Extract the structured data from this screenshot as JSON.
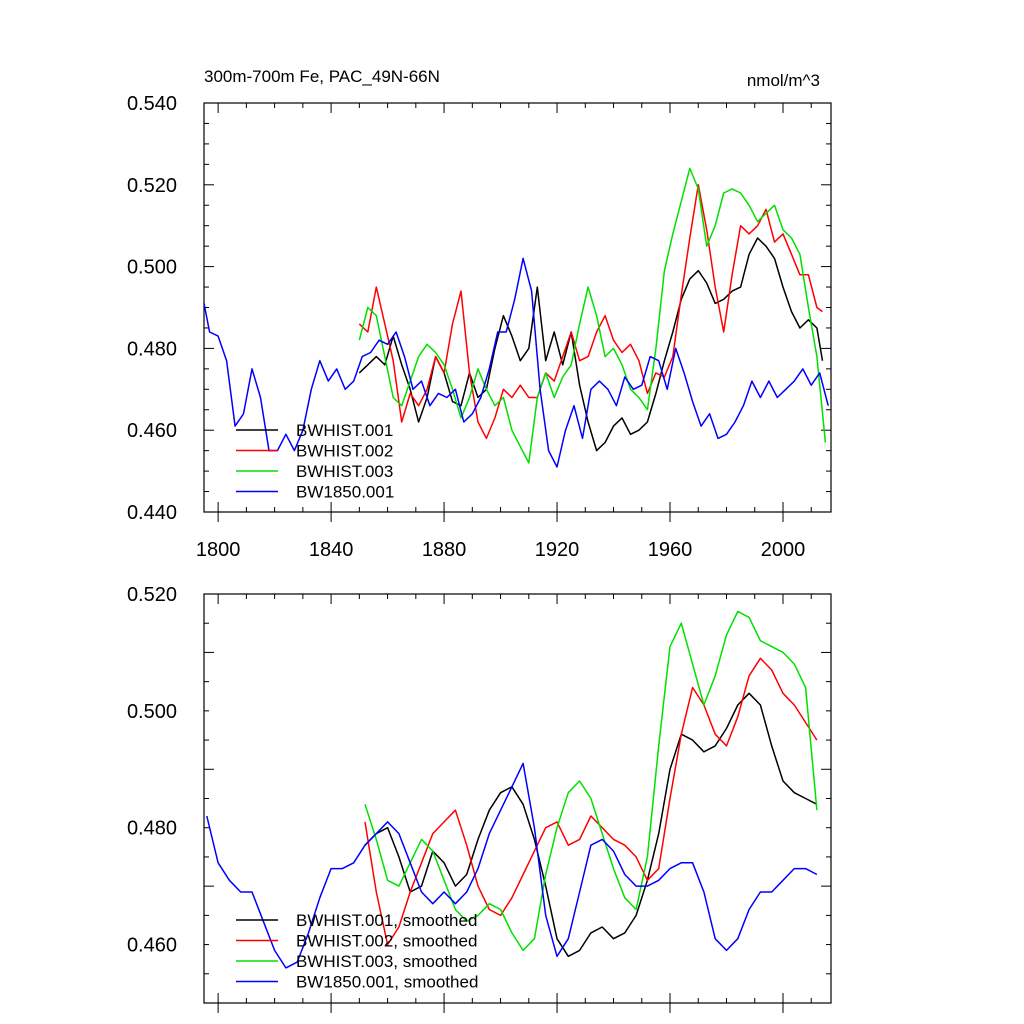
{
  "chart_data": [
    {
      "type": "line",
      "title": "300m-700m Fe, PAC_49N-66N",
      "units": "nmol/m^3",
      "xlim": [
        1795,
        2017
      ],
      "ylim": [
        0.44,
        0.54
      ],
      "x_ticks": [
        "1800",
        "1840",
        "1880",
        "1920",
        "1960",
        "2000"
      ],
      "y_ticks": [
        "0.440",
        "0.460",
        "0.480",
        "0.500",
        "0.520",
        "0.540"
      ],
      "legend_position": "bottom-left",
      "series": [
        {
          "name": "BWHIST.001",
          "color": "#000000",
          "x": [
            1850,
            1853,
            1856,
            1859,
            1862,
            1865,
            1868,
            1871,
            1874,
            1877,
            1880,
            1883,
            1886,
            1889,
            1892,
            1895,
            1898,
            1901,
            1904,
            1907,
            1910,
            1913,
            1916,
            1919,
            1922,
            1925,
            1928,
            1931,
            1934,
            1937,
            1940,
            1943,
            1946,
            1949,
            1952,
            1955,
            1958,
            1961,
            1964,
            1967,
            1970,
            1973,
            1976,
            1979,
            1982,
            1985,
            1988,
            1991,
            1994,
            1997,
            2000,
            2003,
            2006,
            2009,
            2012,
            2014
          ],
          "y": [
            0.474,
            0.476,
            0.478,
            0.476,
            0.483,
            0.476,
            0.47,
            0.462,
            0.468,
            0.478,
            0.474,
            0.467,
            0.466,
            0.474,
            0.468,
            0.47,
            0.48,
            0.488,
            0.483,
            0.477,
            0.48,
            0.495,
            0.477,
            0.484,
            0.476,
            0.484,
            0.471,
            0.462,
            0.455,
            0.457,
            0.461,
            0.463,
            0.459,
            0.46,
            0.462,
            0.469,
            0.477,
            0.484,
            0.492,
            0.497,
            0.499,
            0.496,
            0.491,
            0.492,
            0.494,
            0.495,
            0.503,
            0.507,
            0.505,
            0.502,
            0.495,
            0.489,
            0.485,
            0.487,
            0.485,
            0.477
          ]
        },
        {
          "name": "BWHIST.002",
          "color": "#ff0000",
          "x": [
            1850,
            1853,
            1856,
            1859,
            1862,
            1865,
            1868,
            1871,
            1874,
            1877,
            1880,
            1883,
            1886,
            1889,
            1892,
            1895,
            1898,
            1901,
            1904,
            1907,
            1910,
            1913,
            1916,
            1919,
            1922,
            1925,
            1928,
            1931,
            1934,
            1937,
            1940,
            1943,
            1946,
            1949,
            1952,
            1955,
            1958,
            1961,
            1964,
            1967,
            1970,
            1973,
            1976,
            1979,
            1982,
            1985,
            1988,
            1991,
            1994,
            1997,
            2000,
            2003,
            2006,
            2009,
            2012,
            2014
          ],
          "y": [
            0.486,
            0.484,
            0.495,
            0.486,
            0.477,
            0.462,
            0.469,
            0.466,
            0.47,
            0.478,
            0.474,
            0.486,
            0.494,
            0.474,
            0.462,
            0.458,
            0.463,
            0.47,
            0.468,
            0.471,
            0.468,
            0.468,
            0.474,
            0.472,
            0.478,
            0.484,
            0.477,
            0.478,
            0.484,
            0.488,
            0.482,
            0.479,
            0.481,
            0.477,
            0.469,
            0.474,
            0.473,
            0.478,
            0.493,
            0.507,
            0.52,
            0.509,
            0.495,
            0.484,
            0.498,
            0.51,
            0.508,
            0.51,
            0.514,
            0.506,
            0.508,
            0.503,
            0.498,
            0.498,
            0.49,
            0.489
          ]
        },
        {
          "name": "BWHIST.003",
          "color": "#00e000",
          "x": [
            1850,
            1853,
            1856,
            1859,
            1862,
            1865,
            1868,
            1871,
            1874,
            1877,
            1880,
            1883,
            1886,
            1889,
            1892,
            1895,
            1898,
            1901,
            1904,
            1907,
            1910,
            1913,
            1916,
            1919,
            1922,
            1925,
            1928,
            1931,
            1934,
            1937,
            1940,
            1943,
            1946,
            1949,
            1952,
            1955,
            1958,
            1961,
            1964,
            1967,
            1970,
            1973,
            1976,
            1979,
            1982,
            1985,
            1988,
            1991,
            1994,
            1997,
            2000,
            2003,
            2006,
            2009,
            2012,
            2015
          ],
          "y": [
            0.482,
            0.49,
            0.488,
            0.478,
            0.468,
            0.466,
            0.472,
            0.478,
            0.481,
            0.479,
            0.476,
            0.47,
            0.463,
            0.468,
            0.475,
            0.47,
            0.466,
            0.468,
            0.46,
            0.456,
            0.452,
            0.468,
            0.474,
            0.468,
            0.473,
            0.476,
            0.486,
            0.495,
            0.488,
            0.478,
            0.48,
            0.476,
            0.47,
            0.468,
            0.465,
            0.48,
            0.499,
            0.508,
            0.516,
            0.524,
            0.519,
            0.505,
            0.51,
            0.518,
            0.519,
            0.518,
            0.515,
            0.511,
            0.513,
            0.515,
            0.509,
            0.507,
            0.503,
            0.49,
            0.478,
            0.457
          ]
        },
        {
          "name": "BW1850.001",
          "color": "#0000ff",
          "x": [
            1795,
            1797,
            1800,
            1803,
            1806,
            1809,
            1812,
            1815,
            1818,
            1821,
            1824,
            1827,
            1830,
            1833,
            1836,
            1839,
            1842,
            1845,
            1848,
            1851,
            1854,
            1857,
            1860,
            1863,
            1866,
            1869,
            1872,
            1875,
            1878,
            1881,
            1884,
            1887,
            1890,
            1893,
            1896,
            1899,
            1902,
            1905,
            1908,
            1911,
            1914,
            1917,
            1920,
            1923,
            1926,
            1929,
            1932,
            1935,
            1938,
            1941,
            1944,
            1947,
            1950,
            1953,
            1956,
            1959,
            1962,
            1965,
            1968,
            1971,
            1974,
            1977,
            1980,
            1983,
            1986,
            1989,
            1992,
            1995,
            1998,
            2001,
            2004,
            2007,
            2010,
            2013,
            2016
          ],
          "y": [
            0.491,
            0.484,
            0.483,
            0.477,
            0.461,
            0.464,
            0.475,
            0.468,
            0.455,
            0.455,
            0.459,
            0.455,
            0.46,
            0.47,
            0.477,
            0.472,
            0.475,
            0.47,
            0.472,
            0.478,
            0.479,
            0.482,
            0.481,
            0.484,
            0.478,
            0.47,
            0.472,
            0.466,
            0.469,
            0.468,
            0.47,
            0.462,
            0.464,
            0.468,
            0.475,
            0.484,
            0.484,
            0.492,
            0.502,
            0.494,
            0.47,
            0.455,
            0.451,
            0.46,
            0.466,
            0.458,
            0.47,
            0.472,
            0.47,
            0.466,
            0.473,
            0.47,
            0.471,
            0.478,
            0.477,
            0.47,
            0.48,
            0.474,
            0.467,
            0.461,
            0.464,
            0.458,
            0.459,
            0.462,
            0.466,
            0.472,
            0.468,
            0.472,
            0.468,
            0.47,
            0.472,
            0.475,
            0.471,
            0.474,
            0.466
          ]
        }
      ]
    },
    {
      "type": "line",
      "title": "",
      "units": "",
      "xlim": [
        1795,
        2017
      ],
      "ylim": [
        0.45,
        0.52
      ],
      "x_ticks": [],
      "y_ticks": [
        "0.460",
        "0.480",
        "0.500",
        "0.520"
      ],
      "legend_position": "bottom-left",
      "series": [
        {
          "name": "BWHIST.001, smoothed",
          "color": "#000000",
          "x": [
            1852,
            1856,
            1860,
            1864,
            1868,
            1872,
            1876,
            1880,
            1884,
            1888,
            1892,
            1896,
            1900,
            1904,
            1908,
            1912,
            1916,
            1920,
            1924,
            1928,
            1932,
            1936,
            1940,
            1944,
            1948,
            1952,
            1956,
            1960,
            1964,
            1968,
            1972,
            1976,
            1980,
            1984,
            1988,
            1992,
            1996,
            2000,
            2004,
            2008,
            2012
          ],
          "y": [
            0.477,
            0.479,
            0.48,
            0.475,
            0.469,
            0.47,
            0.476,
            0.474,
            0.47,
            0.472,
            0.478,
            0.483,
            0.486,
            0.487,
            0.484,
            0.478,
            0.47,
            0.461,
            0.458,
            0.459,
            0.462,
            0.463,
            0.461,
            0.462,
            0.465,
            0.471,
            0.479,
            0.49,
            0.496,
            0.495,
            0.493,
            0.494,
            0.497,
            0.501,
            0.503,
            0.501,
            0.494,
            0.488,
            0.486,
            0.485,
            0.484
          ]
        },
        {
          "name": "BWHIST.002, smoothed",
          "color": "#ff0000",
          "x": [
            1852,
            1856,
            1860,
            1864,
            1868,
            1872,
            1876,
            1880,
            1884,
            1888,
            1892,
            1896,
            1900,
            1904,
            1908,
            1912,
            1916,
            1920,
            1924,
            1928,
            1932,
            1936,
            1940,
            1944,
            1948,
            1952,
            1956,
            1960,
            1964,
            1968,
            1972,
            1976,
            1980,
            1984,
            1988,
            1992,
            1996,
            2000,
            2004,
            2008,
            2012
          ],
          "y": [
            0.481,
            0.469,
            0.46,
            0.463,
            0.469,
            0.474,
            0.479,
            0.481,
            0.483,
            0.477,
            0.47,
            0.466,
            0.465,
            0.468,
            0.472,
            0.476,
            0.48,
            0.481,
            0.477,
            0.478,
            0.482,
            0.48,
            0.478,
            0.477,
            0.475,
            0.471,
            0.473,
            0.485,
            0.496,
            0.504,
            0.501,
            0.496,
            0.494,
            0.499,
            0.506,
            0.509,
            0.507,
            0.503,
            0.501,
            0.498,
            0.495
          ]
        },
        {
          "name": "BWHIST.003, smoothed",
          "color": "#00e000",
          "x": [
            1852,
            1856,
            1860,
            1864,
            1868,
            1872,
            1876,
            1880,
            1884,
            1888,
            1892,
            1896,
            1900,
            1904,
            1908,
            1912,
            1916,
            1920,
            1924,
            1928,
            1932,
            1936,
            1940,
            1944,
            1948,
            1952,
            1956,
            1960,
            1964,
            1968,
            1972,
            1976,
            1980,
            1984,
            1988,
            1992,
            1996,
            2000,
            2004,
            2008,
            2012
          ],
          "y": [
            0.484,
            0.478,
            0.471,
            0.47,
            0.474,
            0.478,
            0.476,
            0.471,
            0.466,
            0.464,
            0.465,
            0.467,
            0.466,
            0.462,
            0.459,
            0.461,
            0.472,
            0.48,
            0.486,
            0.488,
            0.485,
            0.479,
            0.473,
            0.468,
            0.466,
            0.475,
            0.494,
            0.511,
            0.515,
            0.508,
            0.501,
            0.506,
            0.513,
            0.517,
            0.516,
            0.512,
            0.511,
            0.51,
            0.508,
            0.504,
            0.483
          ]
        },
        {
          "name": "BW1850.001, smoothed",
          "color": "#0000ff",
          "x": [
            1796,
            1800,
            1804,
            1808,
            1812,
            1816,
            1820,
            1824,
            1828,
            1832,
            1836,
            1840,
            1844,
            1848,
            1852,
            1856,
            1860,
            1864,
            1868,
            1872,
            1876,
            1880,
            1884,
            1888,
            1892,
            1896,
            1900,
            1904,
            1908,
            1912,
            1916,
            1920,
            1924,
            1928,
            1932,
            1936,
            1940,
            1944,
            1948,
            1952,
            1956,
            1960,
            1964,
            1968,
            1972,
            1976,
            1980,
            1984,
            1988,
            1992,
            1996,
            2000,
            2004,
            2008,
            2012
          ],
          "y": [
            0.482,
            0.474,
            0.471,
            0.469,
            0.469,
            0.464,
            0.459,
            0.456,
            0.457,
            0.462,
            0.468,
            0.473,
            0.473,
            0.474,
            0.477,
            0.479,
            0.481,
            0.479,
            0.474,
            0.469,
            0.467,
            0.469,
            0.467,
            0.469,
            0.473,
            0.479,
            0.483,
            0.487,
            0.491,
            0.48,
            0.465,
            0.458,
            0.461,
            0.469,
            0.477,
            0.478,
            0.476,
            0.472,
            0.47,
            0.47,
            0.471,
            0.473,
            0.474,
            0.474,
            0.469,
            0.461,
            0.459,
            0.461,
            0.466,
            0.469,
            0.469,
            0.471,
            0.473,
            0.473,
            0.472
          ]
        }
      ]
    }
  ]
}
